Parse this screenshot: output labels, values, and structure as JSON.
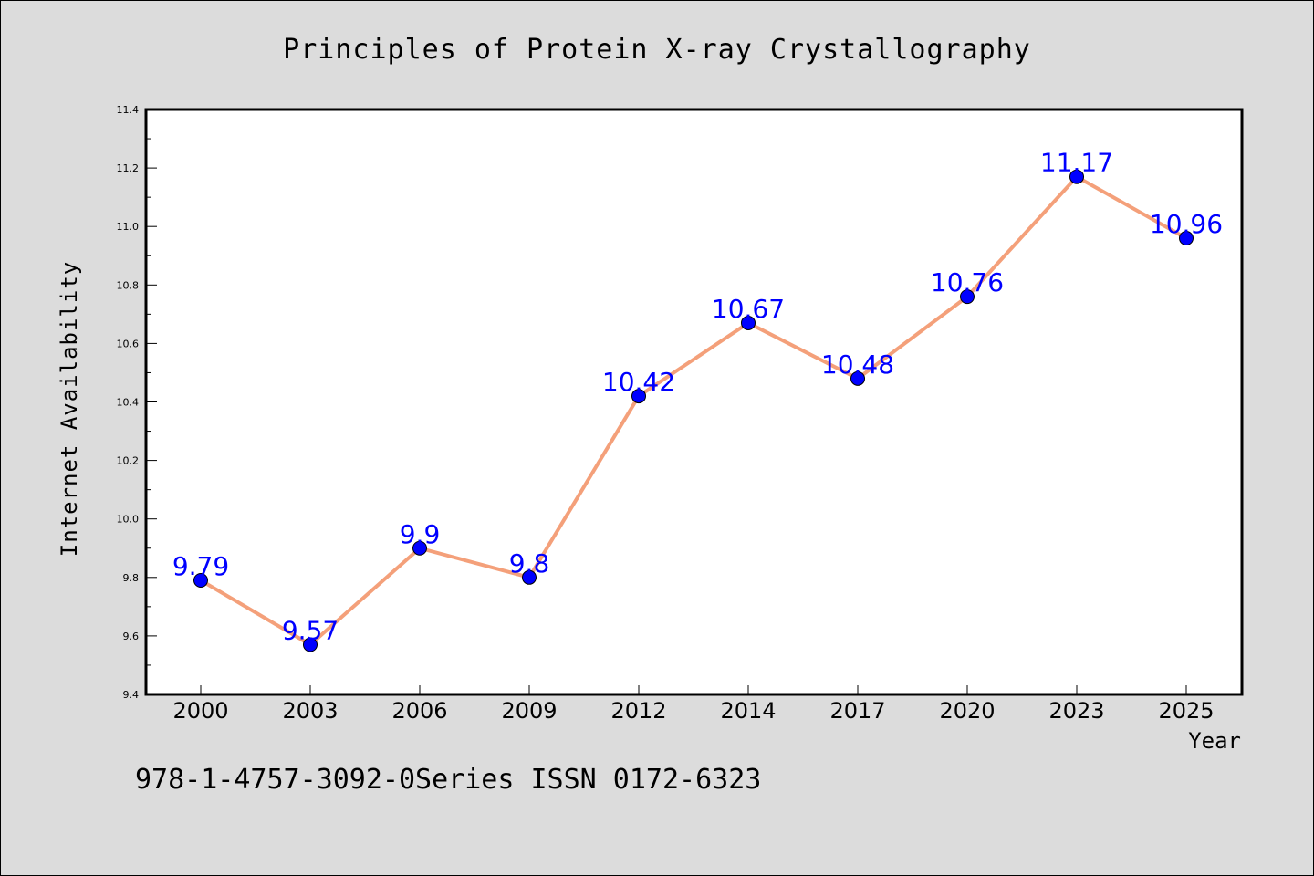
{
  "chart_data": {
    "type": "line",
    "title": "Principles of Protein X-ray Crystallography",
    "xlabel": "Year",
    "ylabel": "Internet Availability",
    "categories": [
      "2000",
      "2003",
      "2006",
      "2009",
      "2012",
      "2014",
      "2017",
      "2020",
      "2023",
      "2025"
    ],
    "series": [
      {
        "values": [
          9.79,
          9.57,
          9.9,
          9.8,
          10.42,
          10.67,
          10.48,
          10.76,
          11.17,
          10.96
        ],
        "labels": [
          "9.79",
          "9.57",
          "9.9",
          "9.8",
          "10.42",
          "10.67",
          "10.48",
          "10.76",
          "11.17",
          "10.96"
        ],
        "line_color": "#f4a07a",
        "marker_color": "#0000ff"
      }
    ],
    "ylim": [
      9.4,
      11.4
    ],
    "yticks": [
      "9.4",
      "9.6",
      "9.8",
      "10.0",
      "10.2",
      "10.4",
      "10.6",
      "10.8",
      "11.0",
      "11.2",
      "11.4"
    ],
    "grid": false,
    "legend": "none"
  },
  "footer": "978-1-4757-3092-0Series ISSN 0172-6323",
  "colors": {
    "background": "#dcdcdc",
    "plot_background": "#ffffff",
    "data_label": "#0000ff"
  }
}
